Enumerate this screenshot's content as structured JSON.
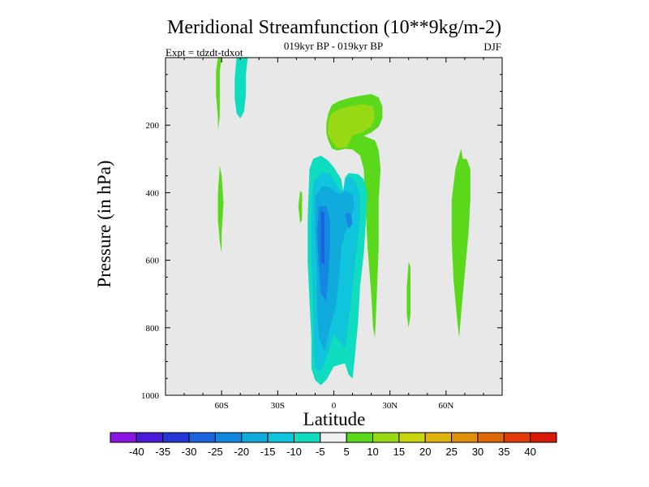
{
  "chart_data": {
    "type": "heatmap",
    "title": "Meridional Streamfunction (10**9kg/m-2)",
    "subtitle_center": "019kyr BP - 019kyr BP",
    "subtitle_left": "Expt = tdzdt-tdxot",
    "subtitle_right": "DJF",
    "xlabel": "Latitude",
    "ylabel": "Pressure (in hPa)",
    "xlim": [
      -90,
      90
    ],
    "ylim": [
      0,
      1000
    ],
    "y_reversed": true,
    "x_ticks": [
      {
        "value": -60,
        "label": "60S"
      },
      {
        "value": -30,
        "label": "30S"
      },
      {
        "value": 0,
        "label": "0"
      },
      {
        "value": 30,
        "label": "30N"
      },
      {
        "value": 60,
        "label": "60N"
      }
    ],
    "y_ticks": [
      {
        "value": 200,
        "label": "200"
      },
      {
        "value": 400,
        "label": "400"
      },
      {
        "value": 600,
        "label": "600"
      },
      {
        "value": 800,
        "label": "800"
      },
      {
        "value": 1000,
        "label": "1000"
      }
    ],
    "background_color": "#e8e8e8",
    "colorbar": {
      "levels": [
        -40,
        -35,
        -30,
        -25,
        -20,
        -15,
        -10,
        -5,
        5,
        10,
        15,
        20,
        25,
        30,
        35,
        40
      ],
      "labels": [
        "-40",
        "-35",
        "-30",
        "-25",
        "-20",
        "-15",
        "-10",
        "-5",
        "5",
        "10",
        "15",
        "20",
        "25",
        "30",
        "35",
        "40"
      ],
      "colors": [
        "#8a14e0",
        "#4a1ad8",
        "#2438d8",
        "#1a64e0",
        "#1488e0",
        "#10aadc",
        "#10c4dc",
        "#10dcc0",
        "#f0f0f0",
        "#5ad81c",
        "#98d814",
        "#c8d40c",
        "#e0b40c",
        "#e09008",
        "#e06808",
        "#e03c08",
        "#d81808"
      ]
    },
    "contour_regions": [
      {
        "name": "nh-upper-cell-outer",
        "level_range": "5 to 10",
        "color": "#5ad81c",
        "points": [
          [
            -4,
            195
          ],
          [
            -3,
            165
          ],
          [
            -1,
            140
          ],
          [
            3,
            128
          ],
          [
            8,
            120
          ],
          [
            14,
            113
          ],
          [
            20,
            108
          ],
          [
            24,
            118
          ],
          [
            26,
            145
          ],
          [
            26,
            180
          ],
          [
            24,
            205
          ],
          [
            20,
            222
          ],
          [
            16,
            232
          ],
          [
            22,
            245
          ],
          [
            24,
            275
          ],
          [
            25,
            330
          ],
          [
            24,
            420
          ],
          [
            24,
            560
          ],
          [
            23,
            700
          ],
          [
            22,
            830
          ],
          [
            21,
            800
          ],
          [
            20,
            700
          ],
          [
            18,
            560
          ],
          [
            17,
            430
          ],
          [
            16,
            330
          ],
          [
            14,
            290
          ],
          [
            10,
            272
          ],
          [
            6,
            270
          ],
          [
            2,
            275
          ],
          [
            -1,
            270
          ],
          [
            -3,
            245
          ],
          [
            -4,
            225
          ]
        ]
      },
      {
        "name": "nh-upper-cell-core",
        "level_range": "15 to 20",
        "color": "#c8d40c",
        "points": [
          [
            -3,
            200
          ],
          [
            -2,
            175
          ],
          [
            2,
            160
          ],
          [
            8,
            158
          ],
          [
            14,
            150
          ],
          [
            19,
            156
          ],
          [
            20,
            180
          ],
          [
            18,
            205
          ],
          [
            13,
            218
          ],
          [
            9,
            225
          ],
          [
            6,
            255
          ],
          [
            3,
            255
          ],
          [
            1,
            235
          ],
          [
            -2,
            222
          ]
        ]
      },
      {
        "name": "nh-upper-cell-mid",
        "level_range": "10 to 15",
        "color": "#98d814",
        "points": [
          [
            -3,
            188
          ],
          [
            -1,
            165
          ],
          [
            4,
            150
          ],
          [
            10,
            143
          ],
          [
            16,
            138
          ],
          [
            21,
            145
          ],
          [
            22,
            175
          ],
          [
            20,
            205
          ],
          [
            15,
            222
          ],
          [
            10,
            230
          ],
          [
            7,
            265
          ],
          [
            2,
            268
          ],
          [
            -1,
            248
          ],
          [
            -3,
            228
          ]
        ]
      },
      {
        "name": "eq-neg-cell-outer",
        "level_range": "-10 to -5",
        "color": "#10dcc0",
        "points": [
          [
            -13,
            330
          ],
          [
            -14,
            480
          ],
          [
            -14,
            600
          ],
          [
            -13,
            720
          ],
          [
            -12,
            830
          ],
          [
            -12,
            920
          ],
          [
            -10,
            955
          ],
          [
            -7,
            970
          ],
          [
            -4,
            955
          ],
          [
            0,
            915
          ],
          [
            6,
            905
          ],
          [
            8,
            940
          ],
          [
            10,
            950
          ],
          [
            11,
            900
          ],
          [
            13,
            780
          ],
          [
            14,
            680
          ],
          [
            16,
            580
          ],
          [
            17,
            500
          ],
          [
            18,
            400
          ],
          [
            16,
            360
          ],
          [
            13,
            345
          ],
          [
            8,
            342
          ],
          [
            6,
            355
          ],
          [
            5,
            395
          ],
          [
            4,
            360
          ],
          [
            0,
            325
          ],
          [
            -3,
            305
          ],
          [
            -7,
            290
          ],
          [
            -11,
            300
          ]
        ]
      },
      {
        "name": "eq-neg-cell-mid",
        "level_range": "-15 to -10",
        "color": "#10c4dc",
        "points": [
          [
            -11,
            370
          ],
          [
            -12,
            480
          ],
          [
            -12,
            600
          ],
          [
            -11,
            730
          ],
          [
            -11,
            840
          ],
          [
            -10,
            920
          ],
          [
            -7,
            930
          ],
          [
            -4,
            890
          ],
          [
            0,
            820
          ],
          [
            6,
            860
          ],
          [
            8,
            780
          ],
          [
            10,
            680
          ],
          [
            12,
            580
          ],
          [
            14,
            480
          ],
          [
            14,
            400
          ],
          [
            11,
            360
          ],
          [
            8,
            352
          ],
          [
            6,
            365
          ],
          [
            5,
            400
          ],
          [
            2,
            380
          ],
          [
            -2,
            345
          ],
          [
            -6,
            340
          ]
        ]
      },
      {
        "name": "eq-neg-cell-inner",
        "level_range": "-20 to -15",
        "color": "#10aadc",
        "points": [
          [
            -10,
            410
          ],
          [
            -10,
            520
          ],
          [
            -9,
            640
          ],
          [
            -9,
            740
          ],
          [
            -8,
            830
          ],
          [
            -5,
            870
          ],
          [
            -2,
            800
          ],
          [
            1,
            740
          ],
          [
            3,
            640
          ],
          [
            4,
            560
          ],
          [
            6,
            520
          ],
          [
            9,
            480
          ],
          [
            11,
            440
          ],
          [
            10,
            405
          ],
          [
            6,
            395
          ],
          [
            3,
            405
          ],
          [
            -2,
            385
          ],
          [
            -6,
            380
          ]
        ]
      },
      {
        "name": "eq-neg-cell-core",
        "level_range": "-25 to -20",
        "color": "#1488e0",
        "points": [
          [
            -8,
            440
          ],
          [
            -9,
            520
          ],
          [
            -8,
            620
          ],
          [
            -7,
            700
          ],
          [
            -4,
            720
          ],
          [
            -3,
            650
          ],
          [
            -2,
            560
          ],
          [
            -2,
            480
          ],
          [
            -4,
            440
          ]
        ]
      },
      {
        "name": "eq-neg-cell-peak",
        "level_range": "-30 to -25",
        "color": "#1a64e0",
        "points": [
          [
            -7,
            455
          ],
          [
            -7,
            520
          ],
          [
            -7,
            605
          ],
          [
            -5,
            615
          ],
          [
            -5,
            540
          ],
          [
            -5,
            460
          ]
        ]
      },
      {
        "name": "eq-neg-cell-eastern-spot",
        "level_range": "-25 to -20",
        "color": "#1488e0",
        "points": [
          [
            6,
            465
          ],
          [
            7,
            488
          ],
          [
            8,
            508
          ],
          [
            10,
            490
          ],
          [
            9,
            462
          ],
          [
            7,
            458
          ]
        ]
      },
      {
        "name": "sh-60s-positive-upper",
        "level_range": "5 to 10",
        "color": "#5ad81c",
        "points": [
          [
            -62,
            0
          ],
          [
            -63,
            40
          ],
          [
            -63,
            110
          ],
          [
            -62,
            175
          ],
          [
            -62,
            215
          ],
          [
            -61,
            175
          ],
          [
            -61,
            110
          ],
          [
            -61,
            40
          ],
          [
            -60,
            0
          ]
        ]
      },
      {
        "name": "sh-50s-negative-upper",
        "level_range": "-10 to -5",
        "color": "#10dcc0",
        "points": [
          [
            -52,
            0
          ],
          [
            -53,
            60
          ],
          [
            -53,
            120
          ],
          [
            -52,
            165
          ],
          [
            -50,
            180
          ],
          [
            -48,
            160
          ],
          [
            -47,
            110
          ],
          [
            -47,
            50
          ],
          [
            -46,
            0
          ]
        ]
      },
      {
        "name": "sh-60s-positive-mid",
        "level_range": "5 to 10",
        "color": "#5ad81c",
        "points": [
          [
            -61,
            320
          ],
          [
            -62,
            400
          ],
          [
            -62,
            480
          ],
          [
            -61,
            545
          ],
          [
            -60,
            580
          ],
          [
            -60,
            520
          ],
          [
            -59,
            430
          ],
          [
            -60,
            350
          ]
        ]
      },
      {
        "name": "sh-18s-positive",
        "level_range": "5 to 10",
        "color": "#5ad81c",
        "points": [
          [
            -18,
            395
          ],
          [
            -19,
            440
          ],
          [
            -18,
            490
          ],
          [
            -17,
            480
          ],
          [
            -17,
            430
          ],
          [
            -17,
            400
          ]
        ]
      },
      {
        "name": "nh-40n-positive",
        "level_range": "5 to 10",
        "color": "#5ad81c",
        "points": [
          [
            40,
            605
          ],
          [
            39,
            680
          ],
          [
            39,
            760
          ],
          [
            40,
            800
          ],
          [
            41,
            760
          ],
          [
            41,
            680
          ],
          [
            41,
            620
          ]
        ]
      },
      {
        "name": "nh-70n-positive",
        "level_range": "5 to 10",
        "color": "#5ad81c",
        "points": [
          [
            68,
            270
          ],
          [
            65,
            330
          ],
          [
            63,
            420
          ],
          [
            63,
            540
          ],
          [
            64,
            660
          ],
          [
            66,
            780
          ],
          [
            67,
            830
          ],
          [
            68,
            760
          ],
          [
            70,
            640
          ],
          [
            72,
            520
          ],
          [
            73,
            420
          ],
          [
            73,
            330
          ],
          [
            71,
            300
          ],
          [
            69,
            300
          ]
        ]
      }
    ]
  }
}
